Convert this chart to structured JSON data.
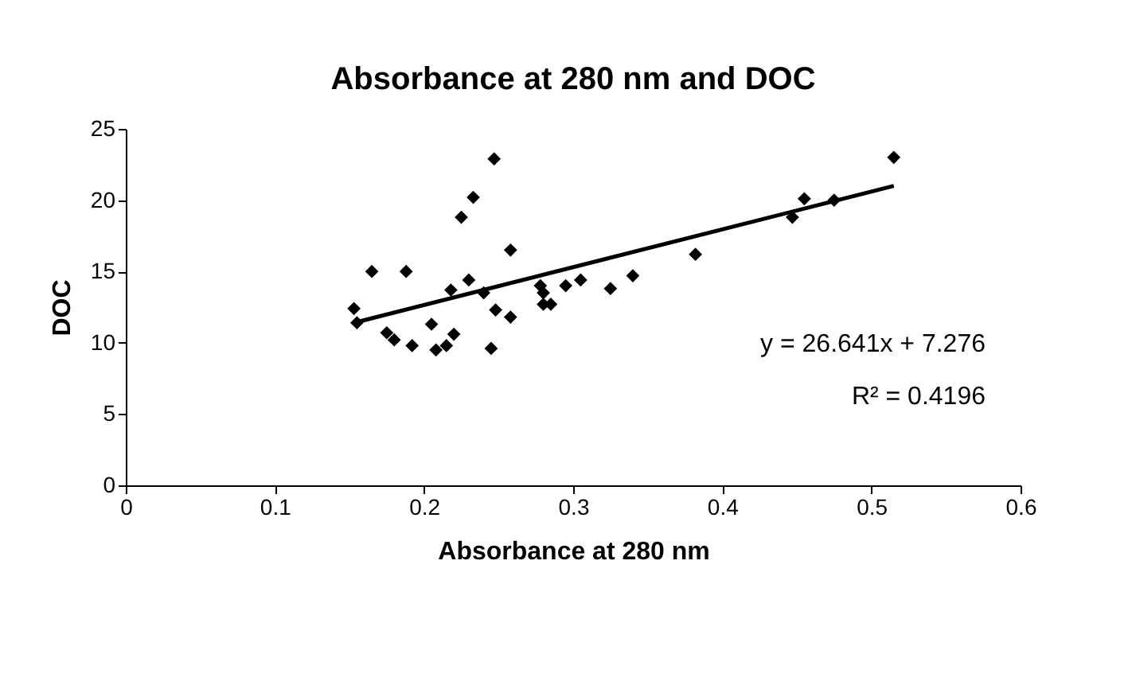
{
  "chart_data": {
    "type": "scatter",
    "title": "Absorbance at 280 nm and DOC",
    "xlabel": "Absorbance at 280 nm",
    "ylabel": "DOC",
    "xlim": [
      0,
      0.6
    ],
    "xticks": [
      0,
      0.1,
      0.2,
      0.3,
      0.4,
      0.5,
      0.6
    ],
    "ylim": [
      0,
      25
    ],
    "yticks": [
      0,
      5,
      10,
      15,
      20,
      25
    ],
    "grid": false,
    "series": [
      {
        "marker": "diamond",
        "color": "#000000",
        "x": [
          0.153,
          0.155,
          0.165,
          0.175,
          0.18,
          0.188,
          0.192,
          0.205,
          0.208,
          0.215,
          0.218,
          0.22,
          0.225,
          0.23,
          0.233,
          0.24,
          0.245,
          0.247,
          0.248,
          0.258,
          0.258,
          0.278,
          0.28,
          0.28,
          0.285,
          0.295,
          0.305,
          0.325,
          0.34,
          0.382,
          0.447,
          0.455,
          0.475,
          0.515
        ],
        "values": [
          12.4,
          11.4,
          15,
          10.7,
          10.2,
          15,
          9.8,
          11.3,
          9.5,
          9.8,
          13.7,
          10.6,
          18.8,
          14.4,
          20.2,
          13.5,
          9.6,
          22.9,
          12.3,
          16.5,
          11.8,
          14,
          13.5,
          12.7,
          12.7,
          14,
          14.4,
          13.8,
          14.7,
          16.2,
          18.8,
          20.1,
          20,
          23
        ]
      },
      {
        "type": "line",
        "color": "#000000",
        "line_style": "solid",
        "x": [
          0.153,
          0.515
        ],
        "values": [
          11.4,
          21.0
        ]
      }
    ],
    "annotations": [
      "y = 26.641x + 7.276",
      "R² = 0.4196"
    ]
  }
}
